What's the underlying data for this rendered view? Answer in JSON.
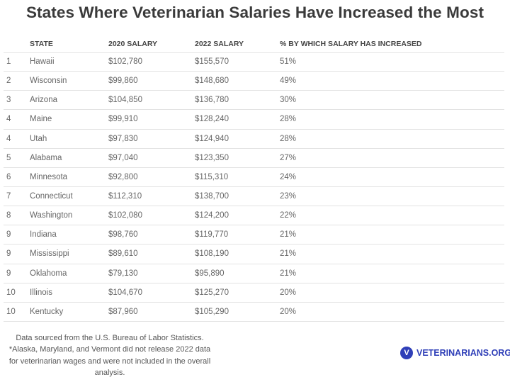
{
  "title": "States Where Veterinarian Salaries Have Increased the Most",
  "headers": [
    "",
    "STATE",
    "2020 SALARY",
    "2022 SALARY",
    "% BY WHICH SALARY HAS INCREASED"
  ],
  "rows": [
    [
      "1",
      "Hawaii",
      "$102,780",
      "$155,570",
      "51%"
    ],
    [
      "2",
      "Wisconsin",
      "$99,860",
      "$148,680",
      "49%"
    ],
    [
      "3",
      "Arizona",
      "$104,850",
      "$136,780",
      "30%"
    ],
    [
      "4",
      "Maine",
      "$99,910",
      "$128,240",
      "28%"
    ],
    [
      "4",
      "Utah",
      "$97,830",
      "$124,940",
      "28%"
    ],
    [
      "5",
      "Alabama",
      "$97,040",
      "$123,350",
      "27%"
    ],
    [
      "6",
      "Minnesota",
      "$92,800",
      "$115,310",
      "24%"
    ],
    [
      "7",
      "Connecticut",
      "$112,310",
      "$138,700",
      "23%"
    ],
    [
      "8",
      "Washington",
      "$102,080",
      "$124,200",
      "22%"
    ],
    [
      "9",
      "Indiana",
      "$98,760",
      "$119,770",
      "21%"
    ],
    [
      "9",
      "Mississippi",
      "$89,610",
      "$108,190",
      "21%"
    ],
    [
      "9",
      "Oklahoma",
      "$79,130",
      "$95,890",
      "21%"
    ],
    [
      "10",
      "Illinois",
      "$104,670",
      "$125,270",
      "20%"
    ],
    [
      "10",
      "Kentucky",
      "$87,960",
      "$105,290",
      "20%"
    ]
  ],
  "footnote": {
    "source": "Data sourced from the U.S. Bureau of Labor Statistics.",
    "note": "*Alaska, Maryland, and Vermont did not release 2022 data for veterinarian wages and were not included in the overall analysis."
  },
  "logo": {
    "mark": "V",
    "text": "VETERINARIANS.ORG",
    "color": "#2f3fb8"
  }
}
